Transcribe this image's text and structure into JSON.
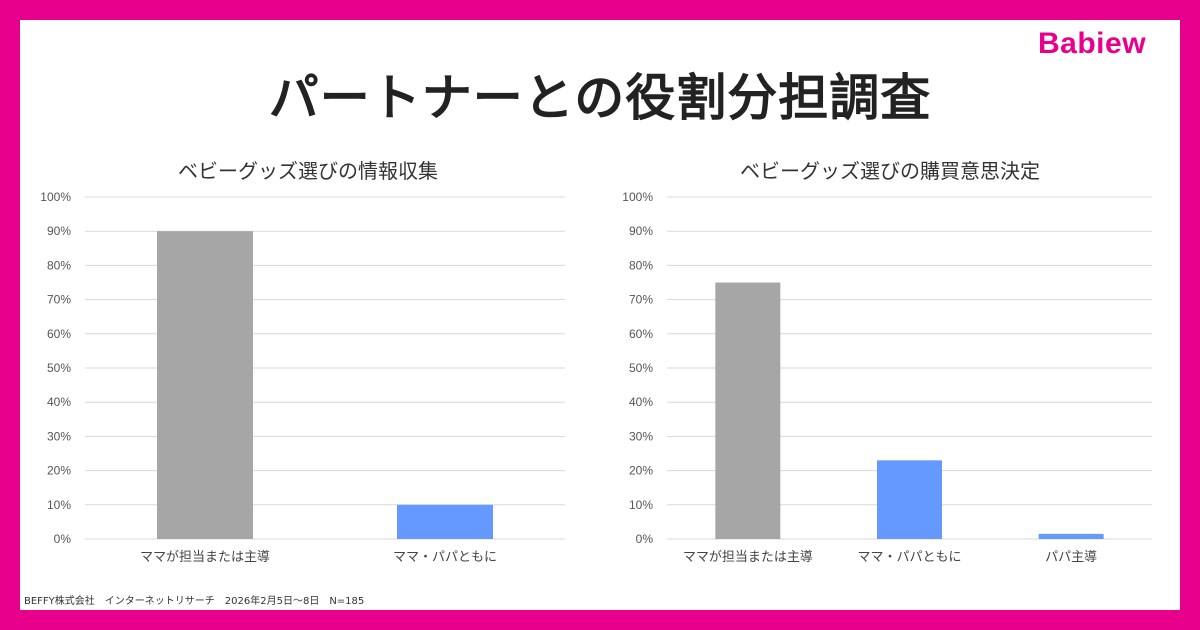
{
  "brand": {
    "logo_text": "Babiew"
  },
  "page": {
    "title": "パートナーとの役割分担調査"
  },
  "footer": {
    "text": "BEFFY株式会社　インターネットリサーチ　2026年2月5日〜8日　N=185"
  },
  "colors": {
    "frame": "#E8008C",
    "mama_bar": "#A6A6A6",
    "both_bar": "#6699FF",
    "papa_bar": "#6699FF",
    "grid": "#D9D9D9"
  },
  "chart_data": [
    {
      "type": "bar",
      "title": "ベビーグッズ選びの情報収集",
      "categories": [
        "ママが担当または主導",
        "ママ・パパともに"
      ],
      "values": [
        90,
        10
      ],
      "bar_colors": [
        "#A6A6A6",
        "#6699FF"
      ],
      "ylim": [
        0,
        100
      ],
      "y_ticks": [
        "0%",
        "10%",
        "20%",
        "30%",
        "40%",
        "50%",
        "60%",
        "70%",
        "80%",
        "90%",
        "100%"
      ],
      "grid": true
    },
    {
      "type": "bar",
      "title": "ベビーグッズ選びの購買意思決定",
      "categories": [
        "ママが担当または主導",
        "ママ・パパともに",
        "パパ主導"
      ],
      "values": [
        75,
        23,
        1.5
      ],
      "bar_colors": [
        "#A6A6A6",
        "#6699FF",
        "#6699FF"
      ],
      "ylim": [
        0,
        100
      ],
      "y_ticks": [
        "0%",
        "10%",
        "20%",
        "30%",
        "40%",
        "50%",
        "60%",
        "70%",
        "80%",
        "90%",
        "100%"
      ],
      "grid": true
    }
  ]
}
